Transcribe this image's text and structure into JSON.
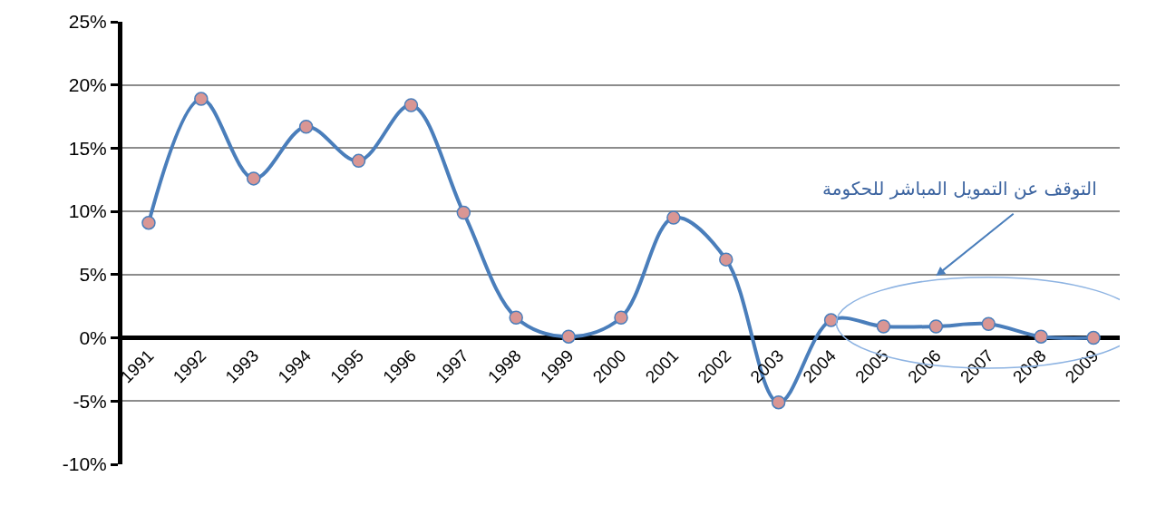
{
  "chart_data": {
    "type": "line",
    "categories": [
      "1991",
      "1992",
      "1993",
      "1994",
      "1995",
      "1996",
      "1997",
      "1998",
      "1999",
      "2000",
      "2001",
      "2002",
      "2003",
      "2004",
      "2005",
      "2006",
      "2007",
      "2008",
      "2009"
    ],
    "series": [
      {
        "color": "#4a7ebb",
        "values": [
          9.1,
          18.9,
          12.6,
          16.7,
          14.0,
          18.4,
          9.9,
          1.6,
          0.1,
          1.6,
          9.5,
          6.2,
          -5.1,
          1.4,
          0.9,
          0.9,
          1.1,
          0.1,
          0.0
        ]
      }
    ],
    "ylim": [
      -10,
      25
    ],
    "yticks": [
      {
        "value": -10,
        "label": "-10%"
      },
      {
        "value": -5,
        "label": "-5%"
      },
      {
        "value": 0,
        "label": "0%"
      },
      {
        "value": 5,
        "label": "5%"
      },
      {
        "value": 10,
        "label": "10%"
      },
      {
        "value": 15,
        "label": "15%"
      },
      {
        "value": 20,
        "label": "20%"
      },
      {
        "value": 25,
        "label": "25%"
      }
    ],
    "grid": "y",
    "marker": "circle",
    "line_style": "solid",
    "legend": false,
    "annotations": [
      "التوقف عن التمويل المباشر للحكومة"
    ]
  }
}
